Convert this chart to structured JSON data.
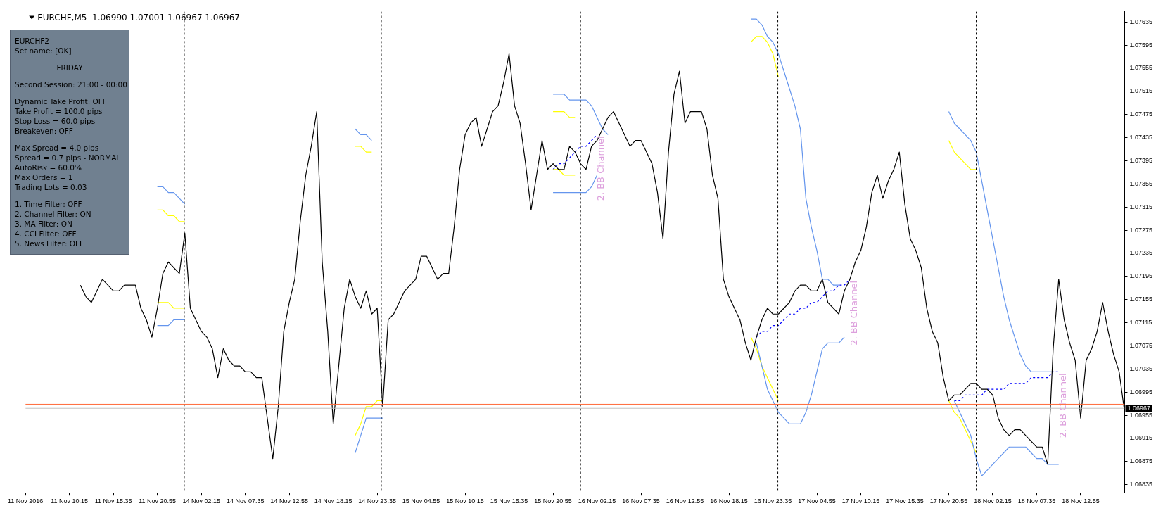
{
  "chart_data": {
    "type": "line",
    "title": "EURCHF,M5  1.06990 1.07001 1.06967 1.06967",
    "categories": [
      "11 Nov 2016",
      null,
      null,
      null,
      null,
      null,
      null,
      null,
      "11 Nov 10:15",
      null,
      null,
      null,
      null,
      null,
      null,
      null,
      "11 Nov 15:35",
      null,
      null,
      null,
      null,
      null,
      null,
      null,
      "11 Nov 20:55",
      null,
      null,
      null,
      null,
      null,
      null,
      null,
      "14 Nov 02:15",
      null,
      null,
      null,
      null,
      null,
      null,
      null,
      "14 Nov 07:35",
      null,
      null,
      null,
      null,
      null,
      null,
      null,
      "14 Nov 12:55",
      null,
      null,
      null,
      null,
      null,
      null,
      null,
      "14 Nov 18:15",
      null,
      null,
      null,
      null,
      null,
      null,
      null,
      "14 Nov 23:35",
      null,
      null,
      null,
      null,
      null,
      null,
      null,
      "15 Nov 04:55",
      null,
      null,
      null,
      null,
      null,
      null,
      null,
      "15 Nov 10:15",
      null,
      null,
      null,
      null,
      null,
      null,
      null,
      "15 Nov 15:35",
      null,
      null,
      null,
      null,
      null,
      null,
      null,
      "15 Nov 20:55",
      null,
      null,
      null,
      null,
      null,
      null,
      null,
      "16 Nov 02:15",
      null,
      null,
      null,
      null,
      null,
      null,
      null,
      "16 Nov 07:35",
      null,
      null,
      null,
      null,
      null,
      null,
      null,
      "16 Nov 12:55",
      null,
      null,
      null,
      null,
      null,
      null,
      null,
      "16 Nov 18:15",
      null,
      null,
      null,
      null,
      null,
      null,
      null,
      "16 Nov 23:35",
      null,
      null,
      null,
      null,
      null,
      null,
      null,
      "17 Nov 04:55",
      null,
      null,
      null,
      null,
      null,
      null,
      null,
      "17 Nov 10:15",
      null,
      null,
      null,
      null,
      null,
      null,
      null,
      "17 Nov 15:35",
      null,
      null,
      null,
      null,
      null,
      null,
      null,
      "17 Nov 20:55",
      null,
      null,
      null,
      null,
      null,
      null,
      null,
      "18 Nov 02:15",
      null,
      null,
      null,
      null,
      null,
      null,
      null,
      "18 Nov 07:35",
      null,
      null,
      null,
      null,
      null,
      null,
      null,
      "18 Nov 12:55",
      null,
      null,
      null,
      null,
      null,
      null,
      null,
      null
    ],
    "ylim": [
      1.06821,
      1.07653
    ],
    "yticks": [
      1.06835,
      1.06875,
      1.06915,
      1.06955,
      1.06995,
      1.07035,
      1.07075,
      1.07115,
      1.07155,
      1.07195,
      1.07235,
      1.07275,
      1.07315,
      1.07355,
      1.07395,
      1.07435,
      1.07475,
      1.07515,
      1.07555,
      1.07595,
      1.07635
    ],
    "grid": false,
    "marker": "none",
    "series": [
      {
        "color": "#000000",
        "values": [
          null,
          null,
          null,
          null,
          null,
          null,
          null,
          null,
          null,
          null,
          1.0718,
          1.0716,
          1.0715,
          1.0717,
          1.0719,
          1.0718,
          1.0717,
          1.0717,
          1.0718,
          1.0718,
          1.0718,
          1.0714,
          1.0712,
          1.0709,
          1.0714,
          1.072,
          1.0722,
          1.0721,
          1.072,
          1.0727,
          1.0714,
          1.0712,
          1.071,
          1.0709,
          1.0707,
          1.0702,
          1.0707,
          1.0705,
          1.0704,
          1.0704,
          1.0703,
          1.0703,
          1.0702,
          1.0702,
          1.0695,
          1.0688,
          1.0697,
          1.071,
          1.0715,
          1.0719,
          1.0729,
          1.0737,
          1.0742,
          1.0748,
          1.0722,
          1.071,
          1.0694,
          1.0704,
          1.0714,
          1.0719,
          1.0716,
          1.0714,
          1.0717,
          1.0713,
          1.0714,
          1.0697,
          1.0712,
          1.0713,
          1.0715,
          1.0717,
          1.0718,
          1.0719,
          1.0723,
          1.0723,
          1.0721,
          1.0719,
          1.072,
          1.072,
          1.0728,
          1.0738,
          1.0744,
          1.0746,
          1.0747,
          1.0742,
          1.0745,
          1.0748,
          1.0749,
          1.0753,
          1.0758,
          1.0749,
          1.0746,
          1.0739,
          1.0731,
          1.0737,
          1.0743,
          1.0738,
          1.0739,
          1.0738,
          1.0738,
          1.0742,
          1.0741,
          1.0739,
          1.0738,
          1.0742,
          1.0743,
          1.0745,
          1.0747,
          1.0748,
          1.0746,
          1.0744,
          1.0742,
          1.0743,
          1.0743,
          1.0741,
          1.0739,
          1.0734,
          1.0726,
          1.0741,
          1.0751,
          1.0755,
          1.0746,
          1.0748,
          1.0748,
          1.0748,
          1.0745,
          1.0737,
          1.0733,
          1.0719,
          1.0716,
          1.0714,
          1.0712,
          1.0708,
          1.0705,
          1.0709,
          1.0712,
          1.0714,
          1.0713,
          1.0713,
          1.0714,
          1.0715,
          1.0717,
          1.0718,
          1.0718,
          1.0717,
          1.0717,
          1.0719,
          1.0715,
          1.0714,
          1.0713,
          1.0717,
          1.0719,
          1.0722,
          1.0724,
          1.0728,
          1.0734,
          1.0737,
          1.0733,
          1.0736,
          1.0738,
          1.0741,
          1.0732,
          1.0726,
          1.0724,
          1.0721,
          1.0714,
          1.071,
          1.0708,
          1.0702,
          1.0698,
          1.0699,
          1.0699,
          1.07,
          1.0701,
          1.0701,
          1.07,
          1.07,
          1.0699,
          1.0695,
          1.0693,
          1.0692,
          1.0693,
          1.0693,
          1.0692,
          1.0691,
          1.069,
          1.069,
          1.0687,
          1.0707,
          1.0719,
          1.0712,
          1.0708,
          1.0705,
          1.0695,
          1.0705,
          1.0707,
          1.071,
          1.0715,
          1.071,
          1.0706,
          1.0703,
          1.0696
        ]
      },
      {
        "color": "#6495ed",
        "values": [
          null,
          null,
          null,
          null,
          null,
          null,
          null,
          null,
          null,
          null,
          null,
          null,
          null,
          null,
          null,
          null,
          null,
          null,
          null,
          null,
          null,
          null,
          null,
          null,
          1.0735,
          1.0735,
          1.0734,
          1.0734,
          1.0733,
          1.0732,
          null,
          null,
          null,
          null,
          null,
          null,
          null,
          null,
          null,
          null,
          null,
          null,
          null,
          null,
          null,
          null,
          null,
          null,
          null,
          null,
          null,
          null,
          null,
          null,
          null,
          null,
          null,
          null,
          null,
          null,
          1.0745,
          1.0744,
          1.0744,
          1.0743,
          null,
          null,
          null,
          null,
          null,
          null,
          null,
          null,
          null,
          null,
          null,
          null,
          null,
          null,
          null,
          null,
          null,
          null,
          null,
          null,
          null,
          null,
          null,
          null,
          null,
          null,
          null,
          null,
          null,
          null,
          null,
          null,
          1.0751,
          1.0751,
          1.0751,
          1.075,
          1.075,
          1.075,
          1.075,
          1.0749,
          1.0747,
          1.0745,
          1.0744,
          null,
          null,
          null,
          null,
          null,
          null,
          null,
          null,
          null,
          null,
          null,
          null,
          null,
          null,
          null,
          null,
          null,
          null,
          null,
          null,
          null,
          null,
          null,
          null,
          null,
          1.0764,
          1.0764,
          1.0763,
          1.0761,
          1.076,
          1.0758,
          1.0755,
          1.0752,
          1.0749,
          1.0745,
          1.0733,
          1.0728,
          1.0724,
          1.0719,
          1.0719,
          1.0718,
          1.0718,
          null,
          null,
          null,
          null,
          null,
          null,
          null,
          null,
          null,
          null,
          null,
          null,
          null,
          null,
          null,
          null,
          null,
          null,
          null,
          1.0748,
          1.0746,
          1.0745,
          1.0744,
          1.0743,
          1.0741,
          1.0736,
          1.0731,
          1.0726,
          1.0721,
          1.0716,
          1.0712,
          1.0709,
          1.0706,
          1.0704,
          1.0703,
          1.0703,
          1.0703,
          1.0703,
          1.0703,
          null,
          null,
          null,
          null,
          null,
          null,
          null,
          null,
          null,
          null,
          null,
          null,
          null
        ]
      },
      {
        "color": "#6495ed",
        "values": [
          null,
          null,
          null,
          null,
          null,
          null,
          null,
          null,
          null,
          null,
          null,
          null,
          null,
          null,
          null,
          null,
          null,
          null,
          null,
          null,
          null,
          null,
          null,
          null,
          1.0711,
          1.0711,
          1.0711,
          1.0712,
          1.0712,
          1.0712,
          null,
          null,
          null,
          null,
          null,
          null,
          null,
          null,
          null,
          null,
          null,
          null,
          null,
          null,
          null,
          null,
          null,
          null,
          null,
          null,
          null,
          null,
          null,
          null,
          null,
          null,
          null,
          null,
          null,
          null,
          1.0689,
          1.0692,
          1.0695,
          1.0695,
          1.0695,
          1.0695,
          null,
          null,
          null,
          null,
          null,
          null,
          null,
          null,
          null,
          null,
          null,
          null,
          null,
          null,
          null,
          null,
          null,
          null,
          null,
          null,
          null,
          null,
          null,
          null,
          null,
          null,
          null,
          null,
          null,
          null,
          1.0734,
          1.0734,
          1.0734,
          1.0734,
          1.0734,
          1.0734,
          1.0734,
          1.0735,
          1.0737,
          null,
          null,
          null,
          null,
          null,
          null,
          null,
          null,
          null,
          null,
          null,
          null,
          null,
          null,
          null,
          null,
          null,
          null,
          null,
          null,
          null,
          null,
          null,
          null,
          null,
          null,
          null,
          null,
          1.0708,
          1.0704,
          1.07,
          1.0698,
          1.0696,
          1.0695,
          1.0694,
          1.0694,
          1.0694,
          1.0696,
          1.0699,
          1.0703,
          1.0707,
          1.0708,
          1.0708,
          1.0708,
          1.0709,
          null,
          null,
          null,
          null,
          null,
          null,
          null,
          null,
          null,
          null,
          null,
          null,
          null,
          null,
          null,
          null,
          null,
          null,
          null,
          1.0698,
          1.0696,
          1.0694,
          1.0692,
          1.0688,
          1.0685,
          1.0686,
          1.0687,
          1.0688,
          1.0689,
          1.069,
          1.069,
          1.069,
          1.069,
          1.0689,
          1.0688,
          1.0688,
          1.0687,
          1.0687,
          1.0687,
          null,
          null,
          null,
          null,
          null,
          null,
          null,
          null,
          null,
          null,
          null,
          null
        ]
      },
      {
        "color": "#ffff00",
        "values": [
          null,
          null,
          null,
          null,
          null,
          null,
          null,
          null,
          null,
          null,
          null,
          null,
          null,
          null,
          null,
          null,
          null,
          null,
          null,
          null,
          null,
          null,
          null,
          null,
          1.0731,
          1.0731,
          1.073,
          1.073,
          1.0729,
          1.0729,
          null,
          null,
          null,
          null,
          null,
          null,
          null,
          null,
          null,
          null,
          null,
          null,
          null,
          null,
          null,
          null,
          null,
          null,
          null,
          null,
          null,
          null,
          null,
          null,
          null,
          null,
          null,
          null,
          null,
          null,
          1.0742,
          1.0742,
          1.0741,
          1.0741,
          null,
          null,
          null,
          null,
          null,
          null,
          null,
          null,
          null,
          null,
          null,
          null,
          null,
          null,
          null,
          null,
          null,
          null,
          null,
          null,
          null,
          null,
          null,
          null,
          null,
          null,
          null,
          null,
          null,
          null,
          null,
          null,
          1.0748,
          1.0748,
          1.0748,
          1.0747,
          1.0747,
          null,
          null,
          null,
          null,
          null,
          null,
          null,
          null,
          null,
          null,
          null,
          null,
          null,
          null,
          null,
          null,
          null,
          null,
          null,
          null,
          null,
          null,
          null,
          null,
          null,
          null,
          null,
          null,
          null,
          null,
          null,
          1.076,
          1.0761,
          1.0761,
          1.076,
          1.0758,
          1.0754,
          null,
          null,
          null,
          null,
          null,
          null,
          null,
          null,
          null,
          null,
          null,
          null,
          null,
          null,
          null,
          null,
          null,
          null,
          null,
          null,
          null,
          null,
          null,
          null,
          null,
          null,
          null,
          null,
          null,
          null,
          1.0743,
          1.0741,
          1.074,
          1.0739,
          1.0738,
          1.0738,
          null,
          null,
          null,
          null,
          null,
          null,
          null,
          null,
          null,
          null,
          null,
          null,
          null,
          null,
          null,
          null,
          null,
          null,
          null,
          null,
          null,
          null,
          null,
          null,
          null,
          null,
          null
        ]
      },
      {
        "color": "#ffff00",
        "values": [
          null,
          null,
          null,
          null,
          null,
          null,
          null,
          null,
          null,
          null,
          null,
          null,
          null,
          null,
          null,
          null,
          null,
          null,
          null,
          null,
          null,
          null,
          null,
          null,
          1.0715,
          1.0715,
          1.0715,
          1.0714,
          1.0714,
          1.0714,
          null,
          null,
          null,
          null,
          null,
          null,
          null,
          null,
          null,
          null,
          null,
          null,
          null,
          null,
          null,
          null,
          null,
          null,
          null,
          null,
          null,
          null,
          null,
          null,
          null,
          null,
          null,
          null,
          null,
          null,
          1.0692,
          1.0694,
          1.0697,
          1.0697,
          1.0698,
          1.0698,
          null,
          null,
          null,
          null,
          null,
          null,
          null,
          null,
          null,
          null,
          null,
          null,
          null,
          null,
          null,
          null,
          null,
          null,
          null,
          null,
          null,
          null,
          null,
          null,
          null,
          null,
          null,
          null,
          null,
          null,
          1.0738,
          1.0738,
          1.0737,
          1.0737,
          1.0737,
          null,
          null,
          null,
          null,
          null,
          null,
          null,
          null,
          null,
          null,
          null,
          null,
          null,
          null,
          null,
          null,
          null,
          null,
          null,
          null,
          null,
          null,
          null,
          null,
          null,
          null,
          null,
          null,
          null,
          null,
          null,
          1.0709,
          1.0707,
          1.0704,
          1.0702,
          1.07,
          1.0698,
          null,
          null,
          null,
          null,
          null,
          null,
          null,
          null,
          null,
          null,
          null,
          null,
          null,
          null,
          null,
          null,
          null,
          null,
          null,
          null,
          null,
          null,
          null,
          null,
          null,
          null,
          null,
          null,
          null,
          null,
          1.0698,
          1.0696,
          1.0695,
          1.0693,
          1.0691,
          1.0689,
          null,
          null,
          null,
          null,
          null,
          null,
          null,
          null,
          null,
          null,
          null,
          null,
          null,
          null,
          null,
          null,
          null,
          null,
          null,
          null,
          null,
          null,
          null,
          null,
          null,
          null,
          null
        ]
      },
      {
        "color": "#0000ff",
        "line_style": "dashed",
        "values": [
          null,
          null,
          null,
          null,
          null,
          null,
          null,
          null,
          null,
          null,
          null,
          null,
          null,
          null,
          null,
          null,
          null,
          null,
          null,
          null,
          null,
          null,
          null,
          null,
          null,
          null,
          null,
          null,
          null,
          null,
          null,
          null,
          null,
          null,
          null,
          null,
          null,
          null,
          null,
          null,
          null,
          null,
          null,
          null,
          null,
          null,
          null,
          null,
          null,
          null,
          null,
          null,
          null,
          null,
          null,
          null,
          null,
          null,
          null,
          null,
          null,
          null,
          null,
          null,
          null,
          null,
          null,
          null,
          null,
          null,
          null,
          null,
          null,
          null,
          null,
          null,
          null,
          null,
          null,
          null,
          null,
          null,
          null,
          null,
          null,
          null,
          null,
          null,
          null,
          null,
          null,
          null,
          null,
          null,
          null,
          null,
          1.0738,
          1.0739,
          1.0739,
          1.074,
          1.0741,
          1.0742,
          1.0742,
          1.0743,
          1.0744,
          null,
          null,
          null,
          null,
          null,
          null,
          null,
          null,
          null,
          null,
          null,
          null,
          null,
          null,
          null,
          null,
          null,
          null,
          null,
          null,
          null,
          null,
          null,
          null,
          null,
          null,
          null,
          null,
          1.0709,
          1.071,
          1.071,
          1.0711,
          1.0711,
          1.0712,
          1.0713,
          1.0713,
          1.0714,
          1.0714,
          1.0715,
          1.0715,
          1.0716,
          1.0717,
          1.0717,
          1.0718,
          1.0718,
          1.0719,
          null,
          null,
          null,
          null,
          null,
          null,
          null,
          null,
          null,
          null,
          null,
          null,
          null,
          null,
          null,
          null,
          null,
          null,
          1.0698,
          1.0698,
          1.0699,
          1.0699,
          1.0699,
          1.0699,
          1.07,
          1.07,
          1.07,
          1.07,
          1.0701,
          1.0701,
          1.0701,
          1.0701,
          1.0702,
          1.0702,
          1.0702,
          1.0702,
          1.0703,
          1.0703,
          null,
          null,
          null,
          null,
          null,
          null,
          null,
          null,
          null,
          null,
          null,
          null
        ]
      }
    ],
    "ref_lines": [
      {
        "axis": "y",
        "value": 1.06974,
        "color": "#ff6a39",
        "line_style": "solid"
      },
      {
        "axis": "y",
        "value": 1.06967,
        "label": "1.06967",
        "color": "#c0c0c0",
        "line_style": "solid"
      }
    ],
    "annotations": [
      "2. BB Channel",
      "2. BB Channel",
      "2. BB Channel",
      "EURCHF2",
      "Set name: [OK]",
      "FRIDAY",
      "Second Session: 21:00 - 00:00",
      "Dynamic Take Profit: OFF",
      "Take Profit = 100.0 pips",
      "Stop Loss = 60.0 pips",
      "Breakeven: OFF",
      "Max Spread = 4.0 pips",
      "Spread = 0.7 pips - NORMAL",
      "AutoRisk = 60.0%",
      "Max Orders = 1",
      "Trading Lots = 0.03",
      "1. Time Filter: OFF",
      "2. Channel Filter: ON",
      "3. MA Filter: ON",
      "4. CCI Filter: OFF",
      "5. News Filter: OFF"
    ]
  }
}
